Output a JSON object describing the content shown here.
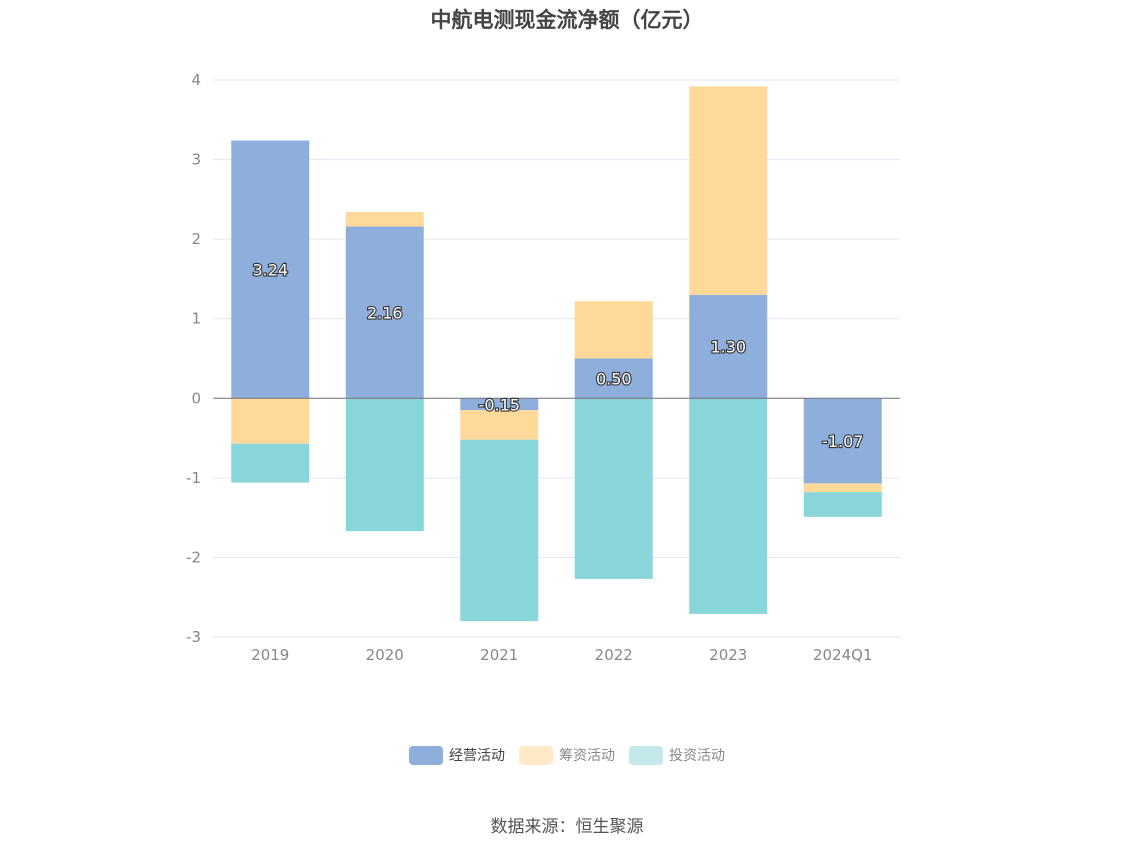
{
  "title": "中航电测现金流净额（亿元）",
  "source": "数据来源：恒生聚源",
  "legend": [
    {
      "label": "经营活动",
      "color": "#8eaedb"
    },
    {
      "label": "筹资活动",
      "color": "#ffd999"
    },
    {
      "label": "投资活动",
      "color": "#88d6d9"
    }
  ],
  "legend_inactive_colors": [
    "#ffe9c7",
    "#c3e9eb"
  ],
  "chart_data": {
    "type": "bar",
    "stacked": true,
    "categories": [
      "2019",
      "2020",
      "2021",
      "2022",
      "2023",
      "2024Q1"
    ],
    "series": [
      {
        "name": "经营活动",
        "color": "#8eaedb",
        "values": [
          3.24,
          2.16,
          -0.15,
          0.5,
          1.3,
          -1.07
        ],
        "labels": [
          "3.24",
          "2.16",
          "-0.15",
          "0.50",
          "1.30",
          "-1.07"
        ]
      },
      {
        "name": "筹资活动",
        "color": "#ffd999",
        "values": [
          -0.57,
          0.18,
          -0.37,
          0.72,
          2.62,
          -0.11
        ]
      },
      {
        "name": "投资活动",
        "color": "#88d6d9",
        "values": [
          -0.49,
          -1.67,
          -2.28,
          -2.27,
          -2.71,
          -0.31
        ]
      }
    ],
    "yticks": [
      "4",
      "3",
      "2",
      "1",
      "0",
      "-1",
      "-2",
      "-3"
    ],
    "ylim": [
      -3,
      4
    ],
    "grid": true,
    "legend_position": "bottom"
  }
}
